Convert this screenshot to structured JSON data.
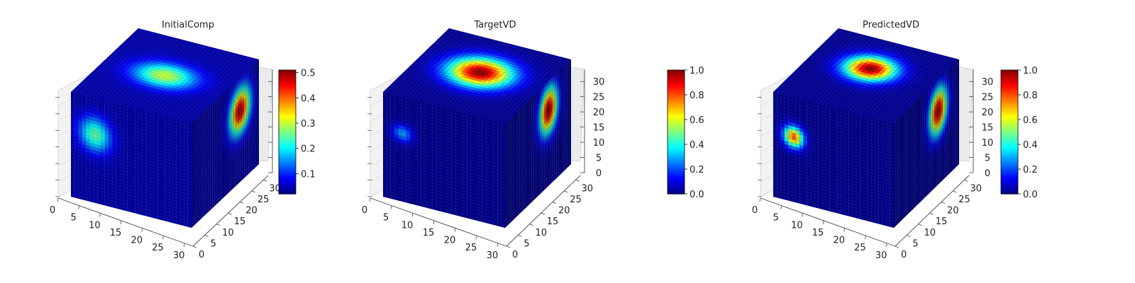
{
  "figure": {
    "panels": [
      {
        "title": "InitialComp"
      },
      {
        "title": "TargetVD"
      },
      {
        "title": "PredictedVD"
      }
    ]
  },
  "chart_data": [
    {
      "type": "voxel-3d",
      "title": "InitialComp",
      "colormap": "jet",
      "grid_size": 32,
      "xlim": [
        0,
        32
      ],
      "ylim": [
        0,
        32
      ],
      "zlim": [
        0,
        32
      ],
      "x_ticks": [
        0,
        5,
        10,
        15,
        20,
        25,
        30
      ],
      "y_ticks": [
        0,
        5,
        10,
        15,
        20,
        25,
        30
      ],
      "z_ticks": [],
      "colorbar": {
        "range": [
          0.02,
          0.51
        ],
        "ticks": [
          0.1,
          0.2,
          0.3,
          0.4,
          0.5
        ],
        "tick_labels": [
          "0.1",
          "0.2",
          "0.3",
          "0.4",
          "0.5"
        ]
      },
      "blobs": {
        "top": [
          {
            "u": 0.5,
            "v": 0.5,
            "ru": 0.3,
            "rv": 0.2,
            "peak": 0.3
          }
        ],
        "front": [
          {
            "u": 0.2,
            "v": 0.35,
            "ru": 0.16,
            "rv": 0.2,
            "peak": 0.25
          }
        ],
        "right": [
          {
            "u": 0.72,
            "v": 0.32,
            "ru": 0.18,
            "rv": 0.25,
            "peak": 0.5
          }
        ]
      }
    },
    {
      "type": "voxel-3d",
      "title": "TargetVD",
      "colormap": "jet",
      "grid_size": 32,
      "xlim": [
        0,
        32
      ],
      "ylim": [
        0,
        32
      ],
      "zlim": [
        0,
        32
      ],
      "x_ticks": [
        0,
        5,
        10,
        15,
        20,
        25,
        30
      ],
      "y_ticks": [
        0,
        5,
        10,
        15,
        20,
        25,
        30
      ],
      "z_ticks": [
        0,
        5,
        10,
        15,
        20,
        25,
        30
      ],
      "colorbar": {
        "range": [
          0,
          1
        ],
        "ticks": [
          0,
          0.2,
          0.4,
          0.6,
          0.8,
          1.0
        ],
        "tick_labels": [
          "0.0",
          "0.2",
          "0.4",
          "0.6",
          "0.8",
          "1.0"
        ]
      },
      "blobs": {
        "top": [
          {
            "u": 0.5,
            "v": 0.55,
            "ru": 0.3,
            "rv": 0.24,
            "peak": 1.0
          }
        ],
        "front": [
          {
            "u": 0.16,
            "v": 0.35,
            "ru": 0.1,
            "rv": 0.1,
            "peak": 0.28
          }
        ],
        "right": [
          {
            "u": 0.66,
            "v": 0.28,
            "ru": 0.16,
            "rv": 0.26,
            "peak": 1.0
          }
        ]
      }
    },
    {
      "type": "voxel-3d",
      "title": "PredictedVD",
      "colormap": "jet",
      "grid_size": 32,
      "xlim": [
        0,
        32
      ],
      "ylim": [
        0,
        32
      ],
      "zlim": [
        0,
        32
      ],
      "x_ticks": [
        0,
        5,
        10,
        15,
        20,
        25,
        30
      ],
      "y_ticks": [
        0,
        5,
        10,
        15,
        20,
        25,
        30
      ],
      "z_ticks": [
        0,
        5,
        10,
        15,
        20,
        25,
        30
      ],
      "colorbar": {
        "range": [
          0,
          1
        ],
        "ticks": [
          0,
          0.2,
          0.4,
          0.6,
          0.8,
          1.0
        ],
        "tick_labels": [
          "0.0",
          "0.2",
          "0.4",
          "0.6",
          "0.8",
          "1.0"
        ]
      },
      "blobs": {
        "top": [
          {
            "u": 0.48,
            "v": 0.6,
            "ru": 0.24,
            "rv": 0.2,
            "peak": 1.0
          }
        ],
        "front": [
          {
            "u": 0.17,
            "v": 0.38,
            "ru": 0.1,
            "rv": 0.12,
            "peak": 0.8
          }
        ],
        "right": [
          {
            "u": 0.68,
            "v": 0.3,
            "ru": 0.16,
            "rv": 0.26,
            "peak": 1.0
          }
        ]
      }
    }
  ]
}
